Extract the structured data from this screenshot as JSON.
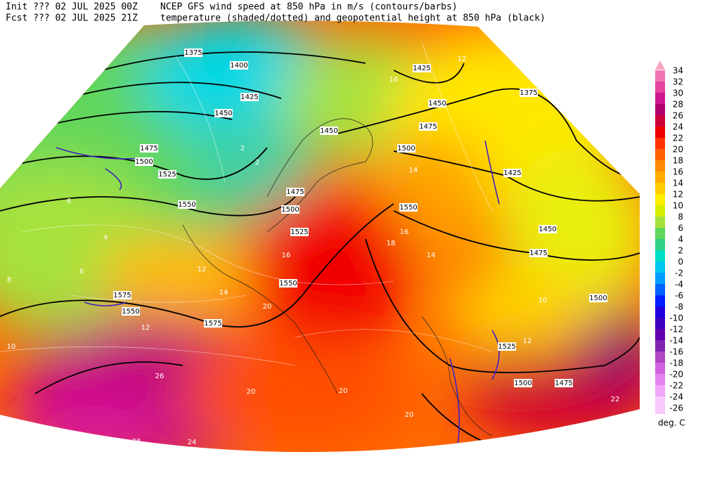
{
  "header": {
    "init": "Init  ??? 02 JUL 2025 00Z",
    "fcst": "Fcst ??? 02 JUL 2025 21Z",
    "desc1": "NCEP GFS wind speed at 850 hPa in m/s (contours/barbs)",
    "desc2": "temperature (shaded/dotted) and geopotential height at 850 hPa (black)"
  },
  "colorbar": {
    "labels": [
      34,
      32,
      30,
      28,
      26,
      24,
      22,
      20,
      18,
      16,
      14,
      12,
      10,
      8,
      6,
      4,
      2,
      0,
      -2,
      -4,
      -6,
      -8,
      -10,
      -12,
      -14,
      -16,
      -18,
      -20,
      -22,
      -24,
      -26
    ],
    "colors": [
      "#f7a6c0",
      "#f276b4",
      "#e6449f",
      "#cf168e",
      "#b0006e",
      "#c9003a",
      "#ee0000",
      "#ff3300",
      "#ff6200",
      "#ff8a00",
      "#ffab00",
      "#ffcc00",
      "#ffee00",
      "#d6ef00",
      "#a6e23c",
      "#5fd85c",
      "#2fcf86",
      "#00dfc6",
      "#00c6f1",
      "#009cff",
      "#0062ff",
      "#0020ff",
      "#2200de",
      "#4000c0",
      "#6100b0",
      "#8224b2",
      "#b046c2",
      "#d262e0",
      "#e384f0",
      "#f1a5f8",
      "#f8c9fc"
    ],
    "unit": "deg. C"
  },
  "height_labels": [
    1375,
    1400,
    1425,
    1450,
    1475,
    1500,
    1525,
    1550,
    1575,
    1550,
    1575,
    1425,
    1450,
    1475,
    1500,
    1550,
    1450,
    1475,
    1500,
    1525,
    1550,
    1375,
    1425,
    1450,
    1475,
    1500,
    1525,
    1500,
    1475
  ],
  "temp_labels": [
    2,
    2,
    6,
    4,
    6,
    8,
    10,
    12,
    20,
    20,
    20,
    26,
    28,
    24,
    20,
    22,
    10,
    12,
    16,
    12,
    14,
    16,
    18,
    14,
    20,
    16,
    14,
    12
  ]
}
